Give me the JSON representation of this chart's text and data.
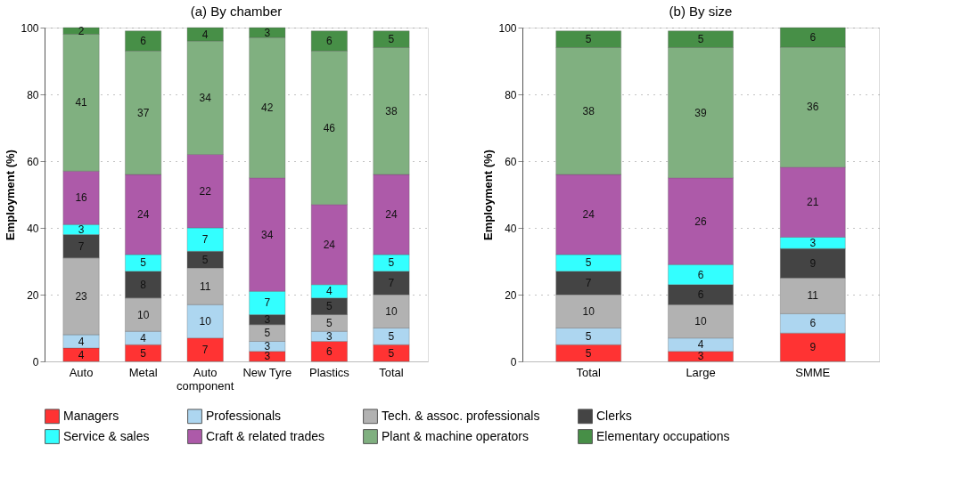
{
  "chart_data": [
    {
      "type": "bar",
      "stacked": true,
      "title": "(a) By chamber",
      "ylabel": "Employment (%)",
      "categories": [
        "Auto",
        "Metal",
        "Auto component",
        "New Tyre",
        "Plastics",
        "Total"
      ],
      "ylim": [
        0,
        100
      ],
      "yticks": [
        0,
        20,
        40,
        60,
        80,
        100
      ],
      "grid": "y",
      "legend": "bottom",
      "series": [
        {
          "name": "Managers",
          "color": "#ff3333",
          "values": [
            4,
            5,
            7,
            3,
            6,
            5
          ],
          "value_labels": [
            "4",
            "5",
            "7",
            "3",
            "6",
            "5"
          ]
        },
        {
          "name": "Professionals",
          "color": "#add6f0",
          "values": [
            4,
            4,
            10,
            3,
            3,
            5
          ],
          "value_labels": [
            "4",
            "4",
            "10",
            "3",
            "3",
            "5"
          ]
        },
        {
          "name": "Tech. & assoc. professionals",
          "color": "#b2b2b2",
          "values": [
            23,
            10,
            11,
            5,
            5,
            10
          ],
          "value_labels": [
            "23",
            "10",
            "11",
            "5",
            "5",
            "10"
          ]
        },
        {
          "name": "Clerks",
          "color": "#444444",
          "values": [
            7,
            8,
            5,
            3,
            5,
            7
          ],
          "value_labels": [
            "7",
            "8",
            "5",
            "3",
            "5",
            "7"
          ]
        },
        {
          "name": "Service & sales",
          "color": "#33ffff",
          "values": [
            3,
            5,
            7,
            7,
            4,
            5
          ],
          "value_labels": [
            "3",
            "5",
            "7",
            "7",
            "4",
            "5"
          ]
        },
        {
          "name": "Craft & related trades",
          "color": "#ad5aa9",
          "values": [
            16,
            24,
            22,
            34,
            24,
            24
          ],
          "value_labels": [
            "16",
            "24",
            "22",
            "34",
            "24",
            "24"
          ]
        },
        {
          "name": "Plant & machine operators",
          "color": "#80b080",
          "values": [
            41,
            37,
            34,
            42,
            46,
            38
          ],
          "value_labels": [
            "41",
            "37",
            "34",
            "42",
            "46",
            "38"
          ]
        },
        {
          "name": "Elementary occupations",
          "color": "#478f47",
          "values": [
            2,
            6,
            4,
            3,
            6,
            5
          ],
          "value_labels": [
            "2",
            "6",
            "4",
            "3",
            "6",
            "5"
          ]
        }
      ]
    },
    {
      "type": "bar",
      "stacked": true,
      "title": "(b) By size",
      "ylabel": "Employment (%)",
      "categories": [
        "Total",
        "Large",
        "SMME"
      ],
      "ylim": [
        0,
        100
      ],
      "yticks": [
        0,
        20,
        40,
        60,
        80,
        100
      ],
      "grid": "y",
      "legend": "bottom",
      "series": [
        {
          "name": "Managers",
          "color": "#ff3333",
          "values": [
            5,
            3,
            8.5
          ],
          "value_labels": [
            "5",
            "3",
            "9"
          ]
        },
        {
          "name": "Professionals",
          "color": "#add6f0",
          "values": [
            5,
            4,
            5.8
          ],
          "value_labels": [
            "5",
            "4",
            "6"
          ]
        },
        {
          "name": "Tech. & assoc. professionals",
          "color": "#b2b2b2",
          "values": [
            10,
            10,
            10.7
          ],
          "value_labels": [
            "10",
            "10",
            "11"
          ]
        },
        {
          "name": "Clerks",
          "color": "#444444",
          "values": [
            7,
            6,
            8.8
          ],
          "value_labels": [
            "7",
            "6",
            "9"
          ]
        },
        {
          "name": "Service & sales",
          "color": "#33ffff",
          "values": [
            5,
            6,
            3.4
          ],
          "value_labels": [
            "5",
            "6",
            "3"
          ]
        },
        {
          "name": "Craft & related trades",
          "color": "#ad5aa9",
          "values": [
            24,
            26,
            21.0
          ],
          "value_labels": [
            "24",
            "26",
            "21"
          ]
        },
        {
          "name": "Plant & machine operators",
          "color": "#80b080",
          "values": [
            38,
            39,
            35.9
          ],
          "value_labels": [
            "38",
            "39",
            "36"
          ]
        },
        {
          "name": "Elementary occupations",
          "color": "#478f47",
          "values": [
            5,
            5,
            5.9
          ],
          "value_labels": [
            "5",
            "5",
            "6"
          ]
        }
      ]
    }
  ]
}
